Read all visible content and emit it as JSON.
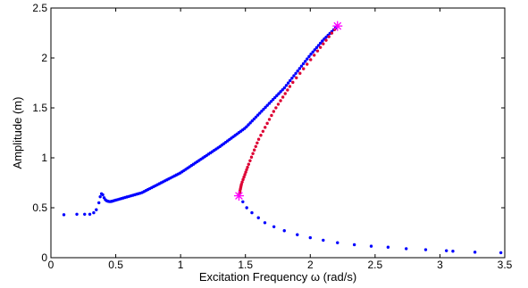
{
  "chart_data": {
    "type": "scatter",
    "title": "",
    "xlabel": "Excitation Frequency ω (rad/s)",
    "ylabel": "Amplitude (m)",
    "xlim": [
      0,
      3.5
    ],
    "ylim": [
      0,
      2.5
    ],
    "xticks": [
      "0",
      "0.5",
      "1",
      "1.5",
      "2",
      "2.5",
      "3",
      "3.5"
    ],
    "yticks": [
      "0",
      "0.5",
      "1",
      "1.5",
      "2",
      "2.5"
    ],
    "grid": false,
    "legend": "none",
    "colors": {
      "stable": "#0000ff",
      "unstable": "#dd0033",
      "bifurcation": "#ff00ff"
    },
    "series": [
      {
        "role": "stable-lower-and-resonance",
        "x": [
          0.1,
          0.2,
          0.26,
          0.3,
          0.33,
          0.35,
          0.37,
          0.38,
          0.39,
          0.4,
          0.41,
          0.42,
          0.43,
          0.44,
          0.45,
          0.46,
          0.47
        ],
        "y": [
          0.43,
          0.435,
          0.435,
          0.435,
          0.45,
          0.48,
          0.55,
          0.61,
          0.64,
          0.63,
          0.6,
          0.58,
          0.57,
          0.565,
          0.562,
          0.562,
          0.565
        ]
      },
      {
        "role": "stable-upper-branch",
        "x_start": 0.47,
        "x_end": 2.21,
        "count": 120,
        "anchors": [
          [
            0.47,
            0.565
          ],
          [
            0.7,
            0.65
          ],
          [
            1.0,
            0.85
          ],
          [
            1.3,
            1.11
          ],
          [
            1.5,
            1.3
          ],
          [
            1.8,
            1.7
          ],
          [
            2.0,
            2.03
          ],
          [
            2.1,
            2.18
          ],
          [
            2.21,
            2.32
          ]
        ]
      },
      {
        "role": "unstable-branch",
        "t_count": 52,
        "anchors": [
          [
            2.21,
            2.32
          ],
          [
            2.05,
            2.06
          ],
          [
            1.85,
            1.73
          ],
          [
            1.72,
            1.47
          ],
          [
            1.6,
            1.18
          ],
          [
            1.52,
            0.92
          ],
          [
            1.47,
            0.74
          ],
          [
            1.45,
            0.62
          ]
        ]
      },
      {
        "role": "stable-lower-jump-branch",
        "x": [
          1.45,
          1.48,
          1.51,
          1.55,
          1.6,
          1.65,
          1.72,
          1.8,
          1.9,
          2.0,
          2.1,
          2.21,
          2.34,
          2.47,
          2.6,
          2.74,
          2.89,
          3.05,
          3.1,
          3.27,
          3.47
        ],
        "y": [
          0.62,
          0.56,
          0.5,
          0.45,
          0.4,
          0.35,
          0.31,
          0.27,
          0.23,
          0.2,
          0.175,
          0.15,
          0.13,
          0.115,
          0.105,
          0.09,
          0.08,
          0.07,
          0.065,
          0.055,
          0.05
        ]
      }
    ],
    "bifurcation_points": [
      {
        "x": 2.21,
        "y": 2.32
      },
      {
        "x": 1.45,
        "y": 0.62
      }
    ]
  }
}
